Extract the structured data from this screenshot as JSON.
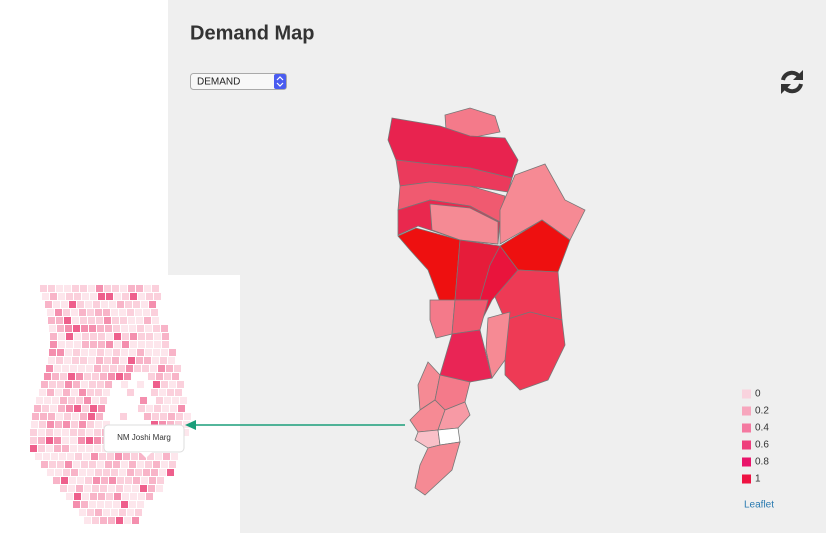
{
  "header": {
    "title": "Demand Map"
  },
  "controls": {
    "select": "DEMAND"
  },
  "legend": {
    "items": [
      {
        "value": 0,
        "color": "#f9d3de"
      },
      {
        "value": 0.2,
        "color": "#f7a6bd"
      },
      {
        "value": 0.4,
        "color": "#f479a0"
      },
      {
        "value": 0.6,
        "color": "#ee3e7c"
      },
      {
        "value": 0.8,
        "color": "#e9146a"
      },
      {
        "value": 1,
        "color": "#ee1242"
      }
    ]
  },
  "attribution": "Leaflet",
  "inset": {
    "tooltip": "NM Joshi Marg"
  }
}
